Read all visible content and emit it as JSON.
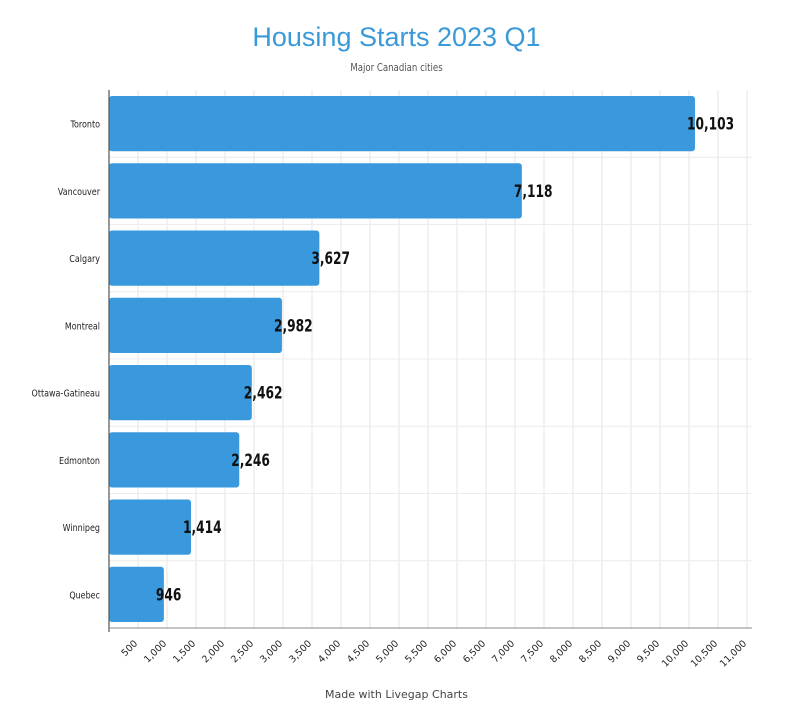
{
  "chart_data": {
    "type": "bar",
    "orientation": "horizontal",
    "title": "Housing Starts 2023 Q1",
    "subtitle": "Major Canadian cities",
    "categories": [
      "Toronto",
      "Vancouver",
      "Calgary",
      "Montreal",
      "Ottawa-Gatineau",
      "Edmonton",
      "Winnipeg",
      "Quebec"
    ],
    "values": [
      10103,
      7118,
      3627,
      2982,
      2462,
      2246,
      1414,
      946
    ],
    "value_labels": [
      "10,103",
      "7,118",
      "3,627",
      "2,982",
      "2,462",
      "2,246",
      "1,414",
      "946"
    ],
    "xlim": [
      0,
      11000
    ],
    "x_ticks": [
      500,
      1000,
      1500,
      2000,
      2500,
      3000,
      3500,
      4000,
      4500,
      5000,
      5500,
      6000,
      6500,
      7000,
      7500,
      8000,
      8500,
      9000,
      9500,
      10000,
      10500,
      11000
    ],
    "x_tick_labels": [
      "500",
      "1,000",
      "1,500",
      "2,000",
      "2,500",
      "3,000",
      "3,500",
      "4,000",
      "4,500",
      "5,000",
      "5,500",
      "6,000",
      "6,500",
      "7,000",
      "7,500",
      "8,000",
      "8,500",
      "9,000",
      "9,500",
      "10,000",
      "10,500",
      "11,000"
    ],
    "grid": true,
    "bar_color": "#3a99dd",
    "footer": "Made with Livegap Charts"
  }
}
